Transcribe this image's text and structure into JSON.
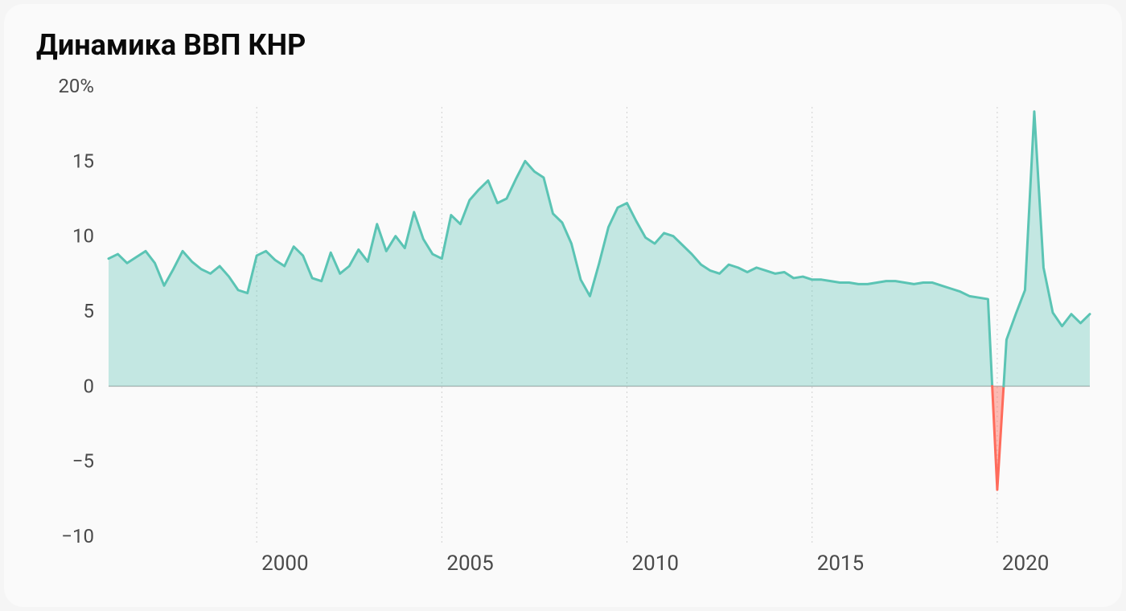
{
  "chart": {
    "type": "area-line",
    "title": "Динамика ВВП КНР",
    "title_fontsize": 36,
    "title_color": "#0a0a0a",
    "background_color": "#fafafa",
    "card_radius": 24,
    "y_axis": {
      "min": -10,
      "max": 20,
      "ticks": [
        -10,
        -5,
        0,
        5,
        10,
        15,
        20
      ],
      "tick_labels": [
        "−10",
        "−5",
        "0",
        "5",
        "10",
        "15",
        "20%"
      ],
      "label_fontsize": 24,
      "label_color": "#4a4a4a"
    },
    "x_axis": {
      "start_year": 1996,
      "end_year": 2022.5,
      "ticks": [
        2000,
        2005,
        2010,
        2015,
        2020
      ],
      "label_fontsize": 26,
      "label_color": "#4a4a4a",
      "grid_color": "#d0d0d0",
      "grid_dash": "2 4"
    },
    "zero_line_color": "#b8b8b8",
    "positive": {
      "line_color": "#5bc4b4",
      "fill_color": "#5bc4b4",
      "line_width": 3,
      "fill_opacity": 0.35
    },
    "negative": {
      "line_color": "#ff6b5b",
      "fill_color": "#ff6b5b",
      "line_width": 3,
      "fill_opacity": 0.45
    },
    "series": [
      {
        "x": 1996.0,
        "y": 8.5
      },
      {
        "x": 1996.25,
        "y": 8.8
      },
      {
        "x": 1996.5,
        "y": 8.2
      },
      {
        "x": 1996.75,
        "y": 8.6
      },
      {
        "x": 1997.0,
        "y": 9.0
      },
      {
        "x": 1997.25,
        "y": 8.2
      },
      {
        "x": 1997.5,
        "y": 6.7
      },
      {
        "x": 1997.75,
        "y": 7.8
      },
      {
        "x": 1998.0,
        "y": 9.0
      },
      {
        "x": 1998.25,
        "y": 8.3
      },
      {
        "x": 1998.5,
        "y": 7.8
      },
      {
        "x": 1998.75,
        "y": 7.5
      },
      {
        "x": 1999.0,
        "y": 8.0
      },
      {
        "x": 1999.25,
        "y": 7.3
      },
      {
        "x": 1999.5,
        "y": 6.4
      },
      {
        "x": 1999.75,
        "y": 6.2
      },
      {
        "x": 2000.0,
        "y": 8.7
      },
      {
        "x": 2000.25,
        "y": 9.0
      },
      {
        "x": 2000.5,
        "y": 8.4
      },
      {
        "x": 2000.75,
        "y": 8.0
      },
      {
        "x": 2001.0,
        "y": 9.3
      },
      {
        "x": 2001.25,
        "y": 8.7
      },
      {
        "x": 2001.5,
        "y": 7.2
      },
      {
        "x": 2001.75,
        "y": 7.0
      },
      {
        "x": 2002.0,
        "y": 8.9
      },
      {
        "x": 2002.25,
        "y": 7.5
      },
      {
        "x": 2002.5,
        "y": 8.0
      },
      {
        "x": 2002.75,
        "y": 9.1
      },
      {
        "x": 2003.0,
        "y": 8.3
      },
      {
        "x": 2003.25,
        "y": 10.8
      },
      {
        "x": 2003.5,
        "y": 9.0
      },
      {
        "x": 2003.75,
        "y": 10.0
      },
      {
        "x": 2004.0,
        "y": 9.2
      },
      {
        "x": 2004.25,
        "y": 11.6
      },
      {
        "x": 2004.5,
        "y": 9.8
      },
      {
        "x": 2004.75,
        "y": 8.8
      },
      {
        "x": 2005.0,
        "y": 8.5
      },
      {
        "x": 2005.25,
        "y": 11.4
      },
      {
        "x": 2005.5,
        "y": 10.8
      },
      {
        "x": 2005.75,
        "y": 12.4
      },
      {
        "x": 2006.0,
        "y": 13.1
      },
      {
        "x": 2006.25,
        "y": 13.7
      },
      {
        "x": 2006.5,
        "y": 12.2
      },
      {
        "x": 2006.75,
        "y": 12.5
      },
      {
        "x": 2007.0,
        "y": 13.8
      },
      {
        "x": 2007.25,
        "y": 15.0
      },
      {
        "x": 2007.5,
        "y": 14.3
      },
      {
        "x": 2007.75,
        "y": 13.9
      },
      {
        "x": 2008.0,
        "y": 11.5
      },
      {
        "x": 2008.25,
        "y": 10.9
      },
      {
        "x": 2008.5,
        "y": 9.5
      },
      {
        "x": 2008.75,
        "y": 7.1
      },
      {
        "x": 2009.0,
        "y": 6.0
      },
      {
        "x": 2009.25,
        "y": 8.2
      },
      {
        "x": 2009.5,
        "y": 10.6
      },
      {
        "x": 2009.75,
        "y": 11.9
      },
      {
        "x": 2010.0,
        "y": 12.2
      },
      {
        "x": 2010.25,
        "y": 11.0
      },
      {
        "x": 2010.5,
        "y": 9.9
      },
      {
        "x": 2010.75,
        "y": 9.5
      },
      {
        "x": 2011.0,
        "y": 10.2
      },
      {
        "x": 2011.25,
        "y": 10.0
      },
      {
        "x": 2011.5,
        "y": 9.4
      },
      {
        "x": 2011.75,
        "y": 8.8
      },
      {
        "x": 2012.0,
        "y": 8.1
      },
      {
        "x": 2012.25,
        "y": 7.7
      },
      {
        "x": 2012.5,
        "y": 7.5
      },
      {
        "x": 2012.75,
        "y": 8.1
      },
      {
        "x": 2013.0,
        "y": 7.9
      },
      {
        "x": 2013.25,
        "y": 7.6
      },
      {
        "x": 2013.5,
        "y": 7.9
      },
      {
        "x": 2013.75,
        "y": 7.7
      },
      {
        "x": 2014.0,
        "y": 7.5
      },
      {
        "x": 2014.25,
        "y": 7.6
      },
      {
        "x": 2014.5,
        "y": 7.2
      },
      {
        "x": 2014.75,
        "y": 7.3
      },
      {
        "x": 2015.0,
        "y": 7.1
      },
      {
        "x": 2015.25,
        "y": 7.1
      },
      {
        "x": 2015.5,
        "y": 7.0
      },
      {
        "x": 2015.75,
        "y": 6.9
      },
      {
        "x": 2016.0,
        "y": 6.9
      },
      {
        "x": 2016.25,
        "y": 6.8
      },
      {
        "x": 2016.5,
        "y": 6.8
      },
      {
        "x": 2016.75,
        "y": 6.9
      },
      {
        "x": 2017.0,
        "y": 7.0
      },
      {
        "x": 2017.25,
        "y": 7.0
      },
      {
        "x": 2017.5,
        "y": 6.9
      },
      {
        "x": 2017.75,
        "y": 6.8
      },
      {
        "x": 2018.0,
        "y": 6.9
      },
      {
        "x": 2018.25,
        "y": 6.9
      },
      {
        "x": 2018.5,
        "y": 6.7
      },
      {
        "x": 2018.75,
        "y": 6.5
      },
      {
        "x": 2019.0,
        "y": 6.3
      },
      {
        "x": 2019.25,
        "y": 6.0
      },
      {
        "x": 2019.5,
        "y": 5.9
      },
      {
        "x": 2019.75,
        "y": 5.8
      },
      {
        "x": 2020.0,
        "y": -6.9
      },
      {
        "x": 2020.25,
        "y": 3.1
      },
      {
        "x": 2020.5,
        "y": 4.8
      },
      {
        "x": 2020.75,
        "y": 6.4
      },
      {
        "x": 2021.0,
        "y": 18.3
      },
      {
        "x": 2021.25,
        "y": 7.9
      },
      {
        "x": 2021.5,
        "y": 4.9
      },
      {
        "x": 2021.75,
        "y": 4.0
      },
      {
        "x": 2022.0,
        "y": 4.8
      },
      {
        "x": 2022.25,
        "y": 4.2
      },
      {
        "x": 2022.5,
        "y": 4.8
      }
    ]
  }
}
